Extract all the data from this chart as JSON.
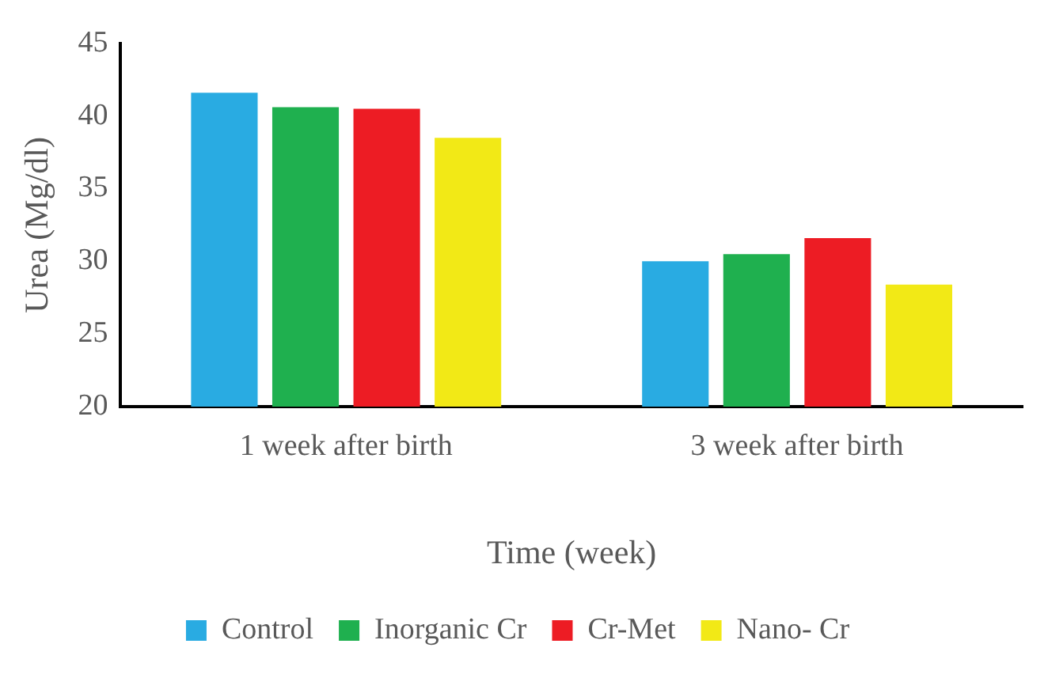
{
  "chart_data": {
    "type": "bar",
    "xlabel": "Time (week)",
    "ylabel": "Urea (Mg/dl)",
    "categories": [
      "1 week after birth",
      "3 week after birth"
    ],
    "series": [
      {
        "name": "Control",
        "color": "#29abe2",
        "values": [
          41.6,
          30.0
        ]
      },
      {
        "name": "Inorganic Cr",
        "color": "#1fb04f",
        "values": [
          40.6,
          30.5
        ]
      },
      {
        "name": "Cr-Met",
        "color": "#ed1c24",
        "values": [
          40.5,
          31.6
        ]
      },
      {
        "name": "Nano- Cr",
        "color": "#f2e916",
        "values": [
          38.5,
          28.4
        ]
      }
    ],
    "ylim": [
      20,
      45
    ],
    "yticks": [
      20,
      25,
      30,
      35,
      40,
      45
    ],
    "grid": false,
    "legend": "bottom"
  }
}
